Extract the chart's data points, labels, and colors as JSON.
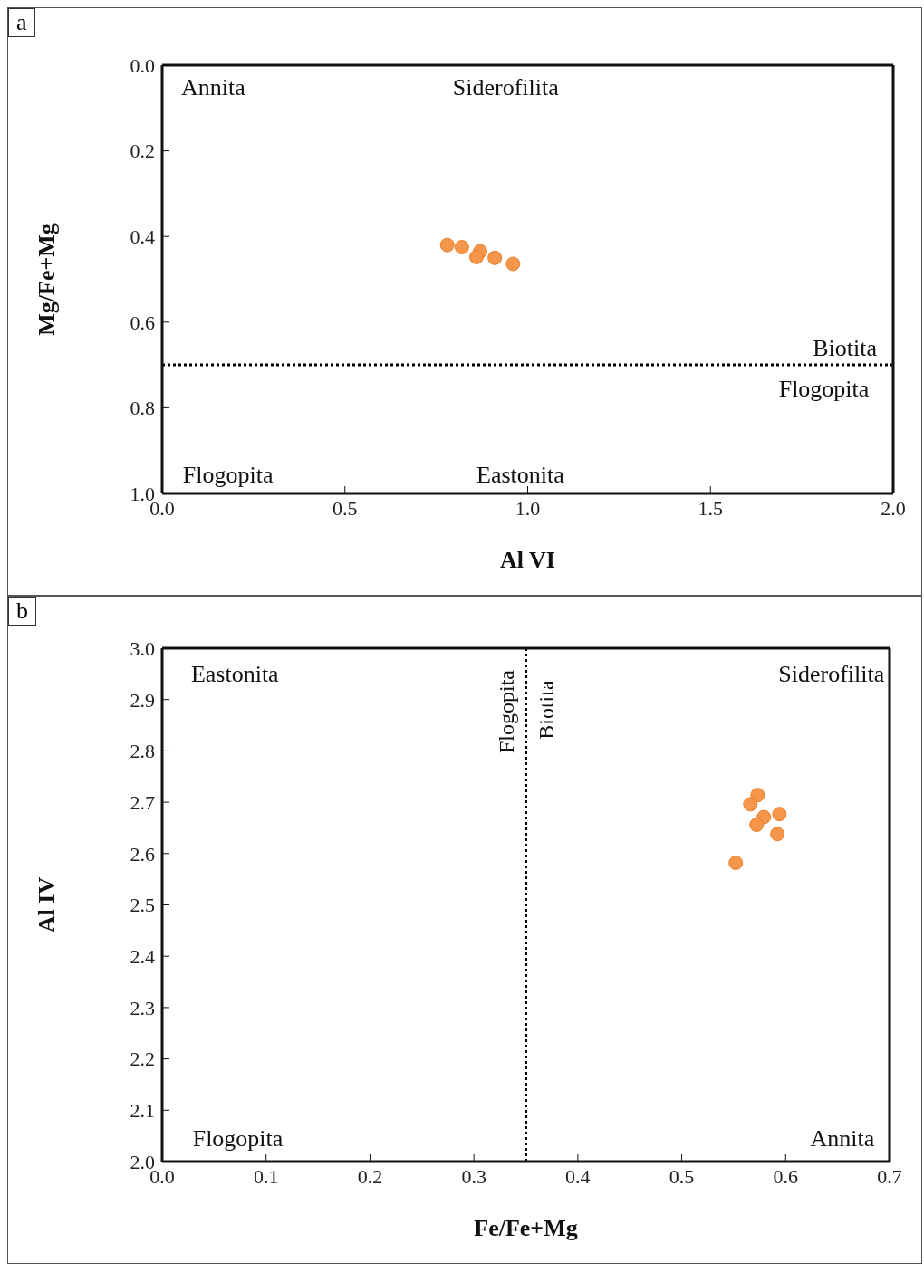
{
  "chart_data": [
    {
      "type": "scatter",
      "title": "a",
      "xlabel": "Al VI",
      "ylabel": "Mg/Fe+Mg",
      "xlim": [
        0,
        2
      ],
      "xticks": [
        {
          "value": 0,
          "label": "0.0"
        },
        0.5,
        {
          "value": 1,
          "label": "1.0"
        },
        1.5,
        {
          "value": 2,
          "label": "2.0"
        }
      ],
      "ylim": [
        1,
        0
      ],
      "yticks": [
        {
          "value": 0,
          "label": "0.0"
        },
        0.2,
        0.4,
        0.6,
        0.8,
        {
          "value": 1,
          "label": "1.0"
        }
      ],
      "grid": false,
      "legend": false,
      "marker": "circle",
      "series": [
        {
          "color": "#f5964a",
          "x": [
            0.78,
            0.82,
            0.87,
            0.86,
            0.91,
            0.96
          ],
          "values": [
            0.42,
            0.425,
            0.435,
            0.448,
            0.45,
            0.464
          ]
        }
      ],
      "ref_lines": [
        {
          "axis": "y",
          "value": 0.7,
          "label": "Biotita",
          "line_style": "dotted",
          "color": "#000000"
        }
      ],
      "annotations": [
        "Annita",
        "Siderofilita",
        "Flogopita",
        "Eastonita",
        "Flogopita"
      ]
    },
    {
      "type": "scatter",
      "title": "b",
      "xlabel": "Fe/Fe+Mg",
      "ylabel": "Al IV",
      "xlim": [
        0,
        0.7
      ],
      "xticks": [
        {
          "value": 0,
          "label": "0.0"
        },
        0.1,
        0.2,
        0.3,
        0.4,
        0.5,
        0.6,
        0.7
      ],
      "ylim": [
        2,
        3
      ],
      "yticks": [
        {
          "value": 2,
          "label": "2.0"
        },
        2.1,
        2.2,
        2.3,
        2.4,
        2.5,
        2.6,
        2.7,
        2.8,
        2.9,
        {
          "value": 3,
          "label": "3.0"
        }
      ],
      "grid": false,
      "legend": false,
      "marker": "circle",
      "series": [
        {
          "color": "#f5964a",
          "x": [
            0.573,
            0.566,
            0.579,
            0.572,
            0.594,
            0.592,
            0.552
          ],
          "values": [
            2.714,
            2.696,
            2.671,
            2.656,
            2.677,
            2.638,
            2.582
          ]
        }
      ],
      "ref_lines": [
        {
          "axis": "x",
          "value": 0.35,
          "label": "Flogopita",
          "line_style": "dotted",
          "color": "#000000"
        }
      ],
      "annotations": [
        "Eastonita",
        "Siderofilita",
        "Flogopita",
        "Annita",
        "Biotita"
      ]
    }
  ]
}
